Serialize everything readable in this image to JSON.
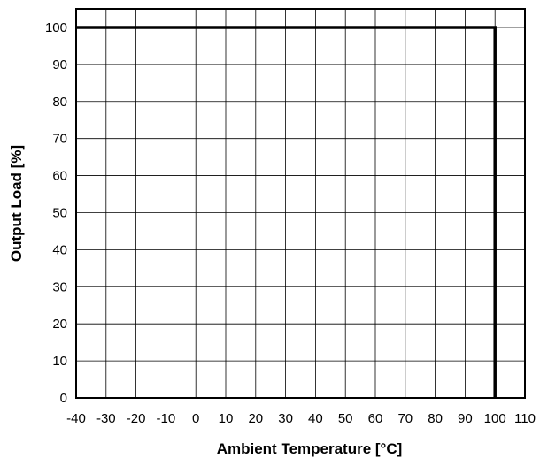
{
  "chart_data": {
    "type": "line",
    "title": "",
    "xlabel": "Ambient Temperature [°C]",
    "ylabel": "Output Load [%]",
    "xlim": [
      -40,
      110
    ],
    "ylim": [
      0,
      105
    ],
    "xticks": [
      -40,
      -30,
      -20,
      -10,
      0,
      10,
      20,
      30,
      40,
      50,
      60,
      70,
      80,
      90,
      100,
      110
    ],
    "yticks": [
      0,
      10,
      20,
      30,
      40,
      50,
      60,
      70,
      80,
      90,
      100
    ],
    "grid": true,
    "legend": "none",
    "series": [
      {
        "x": [
          -40,
          100,
          100
        ],
        "y": [
          100,
          100,
          0
        ]
      }
    ],
    "colors": {
      "grid": "#000000",
      "line": "#000000",
      "background": "#ffffff"
    }
  }
}
